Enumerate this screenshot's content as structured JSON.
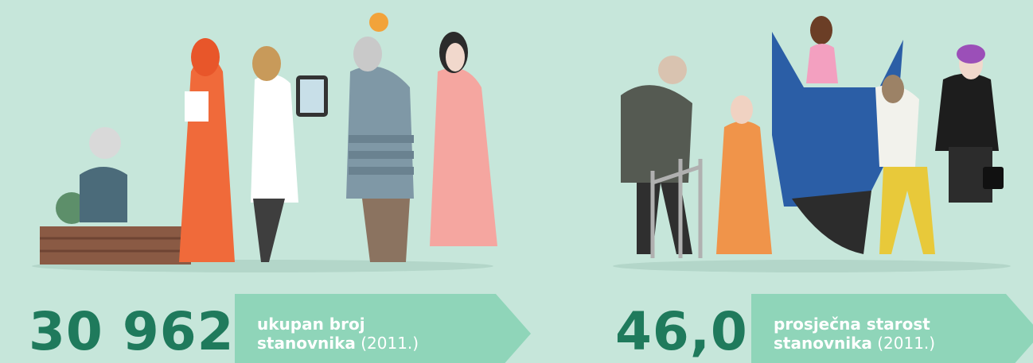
{
  "stats": [
    {
      "number": "30 962",
      "label_lines": [
        "ukupan broj",
        "stanovnika"
      ],
      "year": "(2011.)"
    },
    {
      "number": "46,0",
      "label_lines": [
        "prosječna starost",
        "stanovnika"
      ],
      "year": "(2011.)"
    }
  ]
}
